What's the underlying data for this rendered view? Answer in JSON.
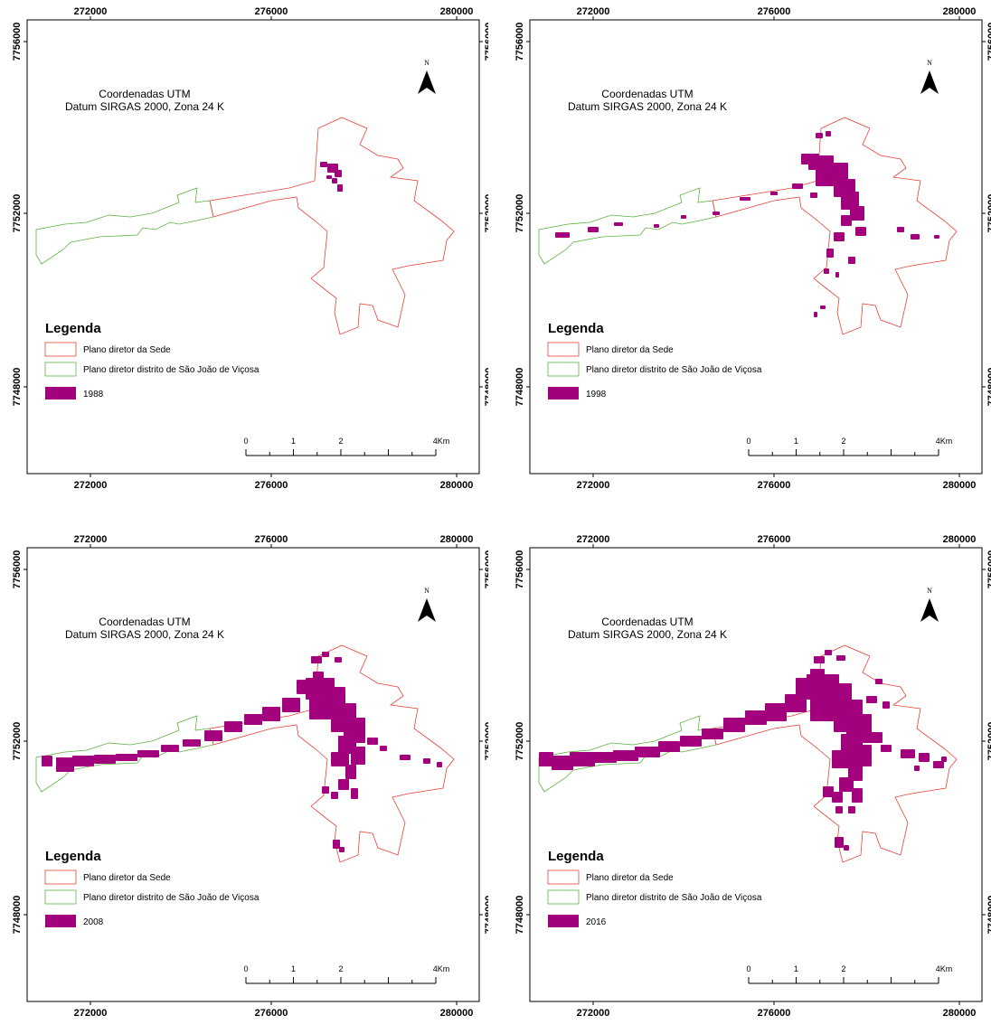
{
  "colors": {
    "urban": "#a3007d",
    "sede_outline": "#e8423a",
    "district_outline": "#5cb23f",
    "frame": "#000000"
  },
  "maps": [
    {
      "year": "1988",
      "top_ticks": [
        "272000",
        "276000",
        "280000"
      ],
      "bottom_ticks": [
        "272000",
        "276000",
        "280000"
      ],
      "left_ticks": [
        "7756000",
        "7752000",
        "7748000"
      ],
      "right_ticks": [
        "7756000",
        "7752000",
        "7748000"
      ],
      "utm_line1": "Coordenadas UTM",
      "utm_line2": "Datum SIRGAS 2000, Zona 24 K",
      "north_label": "N",
      "legend": {
        "title": "Legenda",
        "sede": "Plano diretor da Sede",
        "district": "Plano diretor distrito de São João de Viçosa",
        "year_label": "1988"
      },
      "scale": [
        "0",
        "1",
        "2",
        "4Km"
      ],
      "extent_level": 0
    },
    {
      "year": "1998",
      "top_ticks": [
        "272000",
        "276000",
        "280000"
      ],
      "bottom_ticks": [
        "272000",
        "276000",
        "280000"
      ],
      "left_ticks": [
        "7756000",
        "7752000",
        "7748000"
      ],
      "right_ticks": [
        "7756000",
        "7752000",
        "7748000"
      ],
      "utm_line1": "Coordenadas UTM",
      "utm_line2": "Datum SIRGAS 2000, Zona 24 K",
      "north_label": "N",
      "legend": {
        "title": "Legenda",
        "sede": "Plano diretor da Sede",
        "district": "Plano diretor distrito de São João de Viçosa",
        "year_label": "1998"
      },
      "scale": [
        "0",
        "1",
        "2",
        "4Km"
      ],
      "extent_level": 1
    },
    {
      "year": "2008",
      "top_ticks": [
        "272000",
        "276000",
        "280000"
      ],
      "bottom_ticks": [
        "272000",
        "276000",
        "280000"
      ],
      "left_ticks": [
        "7756000",
        "7752000",
        "7748000"
      ],
      "right_ticks": [
        "7756000",
        "7752000",
        "7748000"
      ],
      "utm_line1": "Coordenadas UTM",
      "utm_line2": "Datum SIRGAS 2000, Zona 24 K",
      "north_label": "N",
      "legend": {
        "title": "Legenda",
        "sede": "Plano diretor da Sede",
        "district": "Plano diretor distrito de São João de Viçosa",
        "year_label": "2008"
      },
      "scale": [
        "0",
        "1",
        "2",
        "4Km"
      ],
      "extent_level": 2
    },
    {
      "year": "2016",
      "top_ticks": [
        "272000",
        "276000",
        "280000"
      ],
      "bottom_ticks": [
        "272000",
        "276000",
        "280000"
      ],
      "left_ticks": [
        "7756000",
        "7752000",
        "7748000"
      ],
      "right_ticks": [
        "7756000",
        "7752000",
        "7748000"
      ],
      "utm_line1": "Coordenadas UTM",
      "utm_line2": "Datum SIRGAS 2000, Zona 24 K",
      "north_label": "N",
      "legend": {
        "title": "Legenda",
        "sede": "Plano diretor da Sede",
        "district": "Plano diretor distrito de São João de Viçosa",
        "year_label": "2016"
      },
      "scale": [
        "0",
        "1",
        "2",
        "4Km"
      ],
      "extent_level": 3
    }
  ]
}
